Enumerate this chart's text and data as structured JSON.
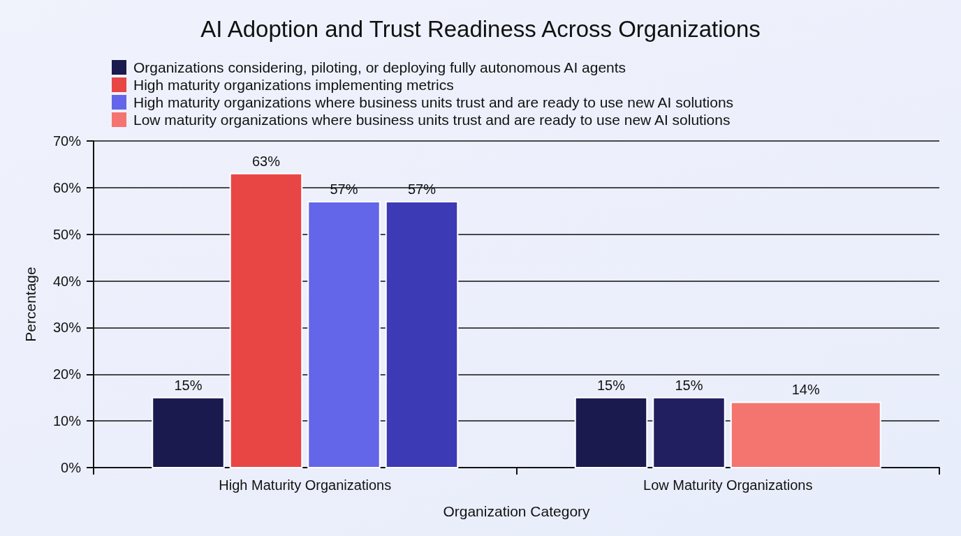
{
  "chart_data": {
    "type": "bar",
    "title": "AI Adoption and Trust Readiness Across Organizations",
    "xlabel": "Organization Category",
    "ylabel": "Percentage",
    "categories": [
      "High Maturity Organizations",
      "Low Maturity Organizations"
    ],
    "series": [
      {
        "name": "Organizations considering, piloting, or deploying fully autonomous AI agents",
        "color": "#1a1a4e",
        "values": [
          15,
          15
        ],
        "value_labels": [
          "15%",
          "15%"
        ]
      },
      {
        "name": "High maturity organizations implementing metrics",
        "color": "#e84545",
        "values": [
          63,
          null
        ],
        "value_labels": [
          "63%",
          null
        ]
      },
      {
        "name": "High maturity organizations where business units trust and are ready to use new AI solutions",
        "color": "#6366e8",
        "values": [
          57,
          null
        ],
        "value_labels": [
          "57%",
          null
        ]
      },
      {
        "color": "#3d3ab5",
        "values": [
          57,
          null
        ],
        "value_labels": [
          "57%",
          null
        ]
      },
      {
        "color": "#221f60",
        "values": [
          null,
          15
        ],
        "value_labels": [
          null,
          "15%"
        ]
      },
      {
        "name": "Low maturity organizations where business units trust and are ready to use new AI solutions",
        "color": "#f47470",
        "values": [
          null,
          14
        ],
        "value_labels": [
          null,
          "14%"
        ]
      }
    ],
    "ylim": [
      0,
      70
    ],
    "yticks": [
      {
        "value": 0,
        "label": "0%"
      },
      {
        "value": 10,
        "label": "10%"
      },
      {
        "value": 20,
        "label": "20%"
      },
      {
        "value": 30,
        "label": "30%"
      },
      {
        "value": 40,
        "label": "40%"
      },
      {
        "value": 50,
        "label": "50%"
      },
      {
        "value": 60,
        "label": "60%"
      },
      {
        "value": 70,
        "label": "70%"
      }
    ],
    "grid": "y",
    "legend": "top left"
  }
}
